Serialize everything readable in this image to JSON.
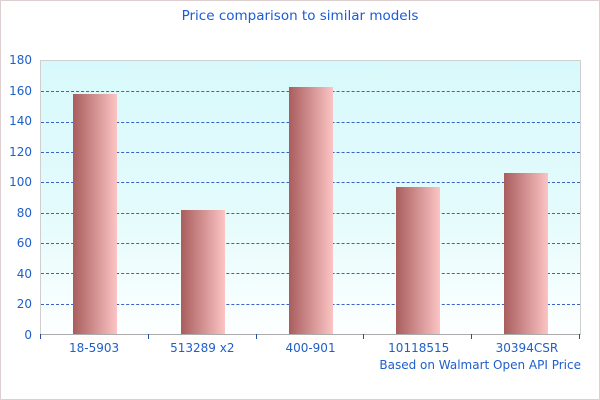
{
  "window": {
    "border_color": "#ddcfcf",
    "background": "#ffffff"
  },
  "chart_data": {
    "type": "bar",
    "title": "Price comparison to similar models",
    "categories": [
      "18-5903",
      "513289 x2",
      "400-901",
      "10118515",
      "30394CSR"
    ],
    "values": [
      158,
      82,
      163,
      97,
      106
    ],
    "footer": "Based on Walmart Open API Price",
    "xlabel": "",
    "ylabel": "",
    "ylim": [
      0,
      180
    ],
    "yticks": [
      0,
      20,
      40,
      60,
      80,
      100,
      120,
      140,
      160,
      180
    ],
    "grid": "horizontal-dashed",
    "legend": "none",
    "colors": {
      "title_text": "#1b5cd5",
      "axis_label_text": "#1f5fc9",
      "gridline": "#3a62c8",
      "tick": "#1f4fa5",
      "bar_gradient_left": "#a95d5d",
      "bar_gradient_right": "#fcc4c4",
      "plot_bg_top": "#d8f9fb",
      "plot_bg_bottom": "#fdffff",
      "plot_border": "#cfcfcf"
    }
  }
}
